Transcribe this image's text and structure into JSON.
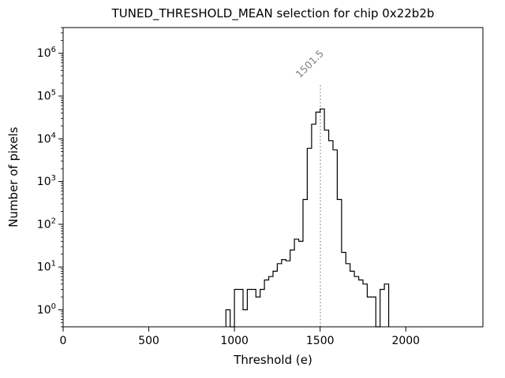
{
  "figure": {
    "title": "TUNED_THRESHOLD_MEAN selection for chip 0x22b2b",
    "xlabel": "Threshold (e)",
    "ylabel": "Number of pixels"
  },
  "chart_data": {
    "type": "bar",
    "subtype": "step-histogram",
    "yscale": "log",
    "title": "TUNED_THRESHOLD_MEAN selection for chip 0x22b2b",
    "xlabel": "Threshold (e)",
    "ylabel": "Number of pixels",
    "xlim": [
      0,
      2450
    ],
    "ylim": [
      0.4,
      4000000
    ],
    "x_ticks": [
      0,
      500,
      1000,
      1500,
      2000
    ],
    "y_tick_exponents": [
      0,
      1,
      2,
      3,
      4,
      5,
      6
    ],
    "grid": false,
    "legend": "none",
    "bin_width": 25,
    "bin_left_edges": [
      950,
      975,
      1000,
      1025,
      1050,
      1075,
      1100,
      1125,
      1150,
      1175,
      1200,
      1225,
      1250,
      1275,
      1300,
      1325,
      1350,
      1375,
      1400,
      1425,
      1450,
      1475,
      1500,
      1525,
      1550,
      1575,
      1600,
      1625,
      1650,
      1675,
      1700,
      1725,
      1750,
      1775,
      1800,
      1825,
      1850,
      1875
    ],
    "counts": [
      1,
      0,
      3,
      3,
      1,
      3,
      3,
      2,
      3,
      5,
      6,
      8,
      12,
      15,
      14,
      25,
      45,
      40,
      380,
      6000,
      22000,
      42000,
      50000,
      16000,
      9000,
      5500,
      380,
      22,
      12,
      8,
      6,
      5,
      4,
      2,
      2,
      0,
      3,
      4
    ],
    "annotation": {
      "x": 1501.5,
      "label": "1501.5",
      "line_style": "dotted",
      "color": "#808080",
      "top_value": 200000
    },
    "colors": {
      "line": "#000000",
      "axes": "#000000",
      "background": "#ffffff",
      "tick_label": "#000000"
    }
  }
}
